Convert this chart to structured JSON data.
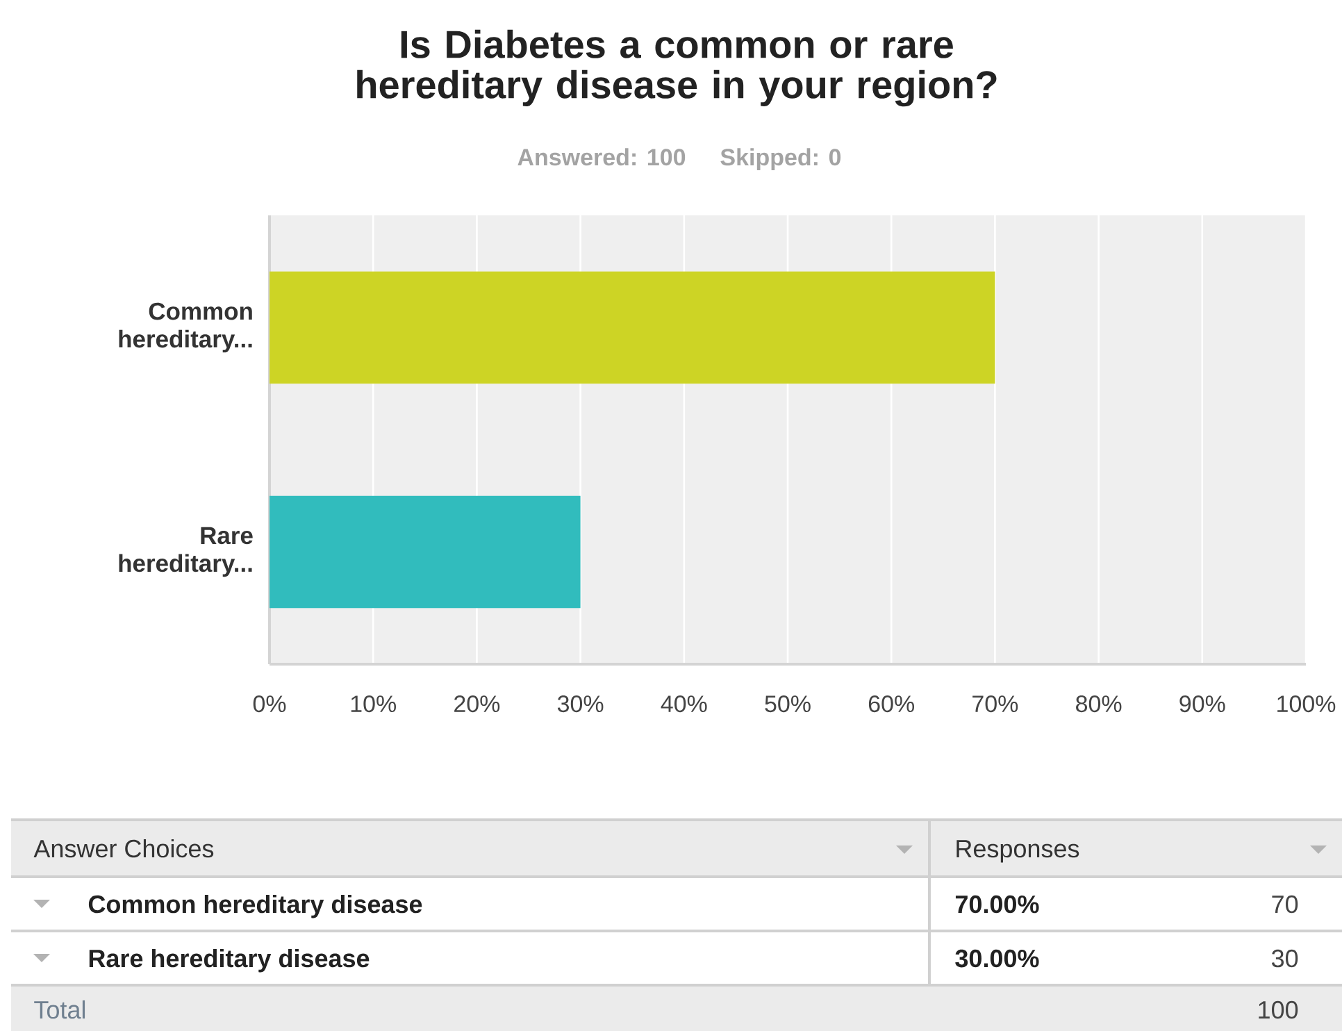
{
  "chart_data": {
    "type": "bar",
    "orientation": "horizontal",
    "title": "Is Diabetes a common or rare hereditary disease in your region?",
    "subtitle": "Answered: 100",
    "categories": [
      "Common hereditary...",
      "Rare hereditary..."
    ],
    "values": [
      70,
      30
    ],
    "colors": [
      "#cdd425",
      "#31bcbd"
    ],
    "xlim": [
      0,
      100
    ],
    "xticks": [
      {
        "value": 0,
        "label": "0%"
      },
      {
        "value": 10,
        "label": "10%"
      },
      {
        "value": 20,
        "label": "20%"
      },
      {
        "value": 30,
        "label": "30%"
      },
      {
        "value": 40,
        "label": "40%"
      },
      {
        "value": 50,
        "label": "50%"
      },
      {
        "value": 60,
        "label": "60%"
      },
      {
        "value": 70,
        "label": "70%"
      },
      {
        "value": 80,
        "label": "80%"
      },
      {
        "value": 90,
        "label": "90%"
      },
      {
        "value": 100,
        "label": "100%"
      }
    ],
    "grid": "x",
    "annotations": [
      "Skipped: 0",
      "Answer Choices",
      "Responses",
      "Common hereditary disease",
      "Rare hereditary disease",
      "70.00%",
      "30.00%",
      "70",
      "30",
      "Total",
      "100"
    ]
  }
}
